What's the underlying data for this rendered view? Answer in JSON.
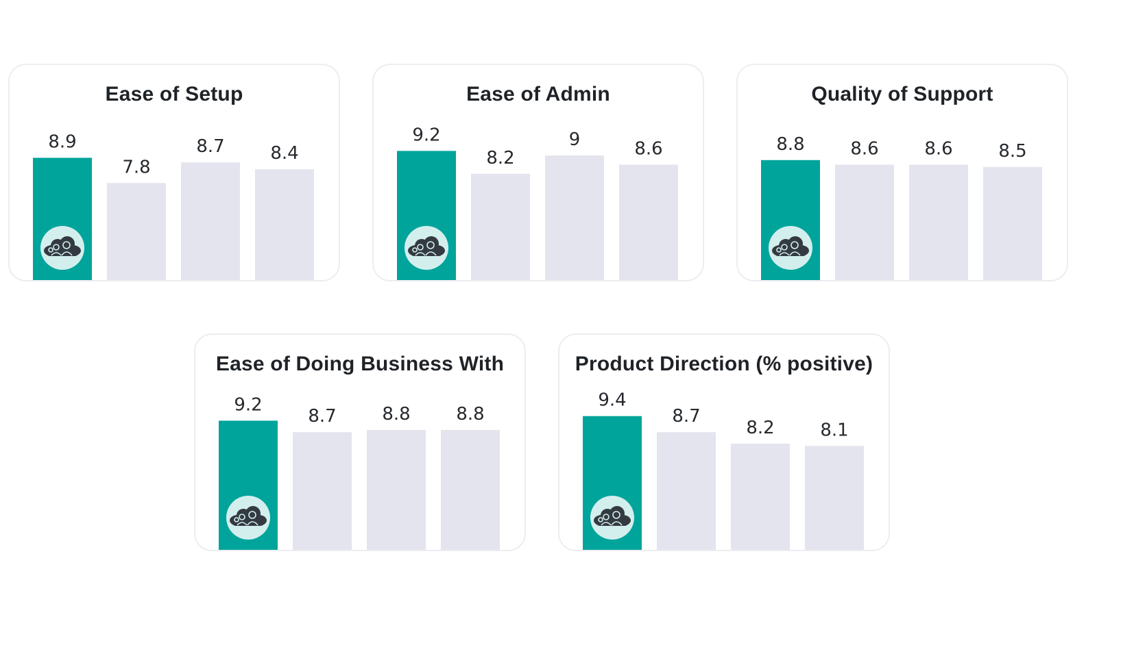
{
  "colors": {
    "highlight": "#01a49b",
    "other": "#e4e4ee",
    "badge_bg": "#d3efed",
    "badge_icon": "#333a41"
  },
  "highlight_badge_icon": "cloud-people-icon",
  "chart_data": [
    {
      "type": "bar",
      "title": "Ease of Setup",
      "values": [
        8.9,
        7.8,
        8.7,
        8.4
      ],
      "labels": [
        "8.9",
        "7.8",
        "8.7",
        "8.4"
      ],
      "highlight_index": 0
    },
    {
      "type": "bar",
      "title": "Ease of Admin",
      "values": [
        9.2,
        8.2,
        9,
        8.6
      ],
      "labels": [
        "9.2",
        "8.2",
        "9",
        "8.6"
      ],
      "highlight_index": 0
    },
    {
      "type": "bar",
      "title": "Quality of Support",
      "values": [
        8.8,
        8.6,
        8.6,
        8.5
      ],
      "labels": [
        "8.8",
        "8.6",
        "8.6",
        "8.5"
      ],
      "highlight_index": 0
    },
    {
      "type": "bar",
      "title": "Ease of Doing Business With",
      "values": [
        9.2,
        8.7,
        8.8,
        8.8
      ],
      "labels": [
        "9.2",
        "8.7",
        "8.8",
        "8.8"
      ],
      "highlight_index": 0
    },
    {
      "type": "bar",
      "title": "Product Direction (% positive)",
      "values": [
        9.4,
        8.7,
        8.2,
        8.1
      ],
      "labels": [
        "9.4",
        "8.7",
        "8.2",
        "8.1"
      ],
      "highlight_index": 0
    }
  ]
}
